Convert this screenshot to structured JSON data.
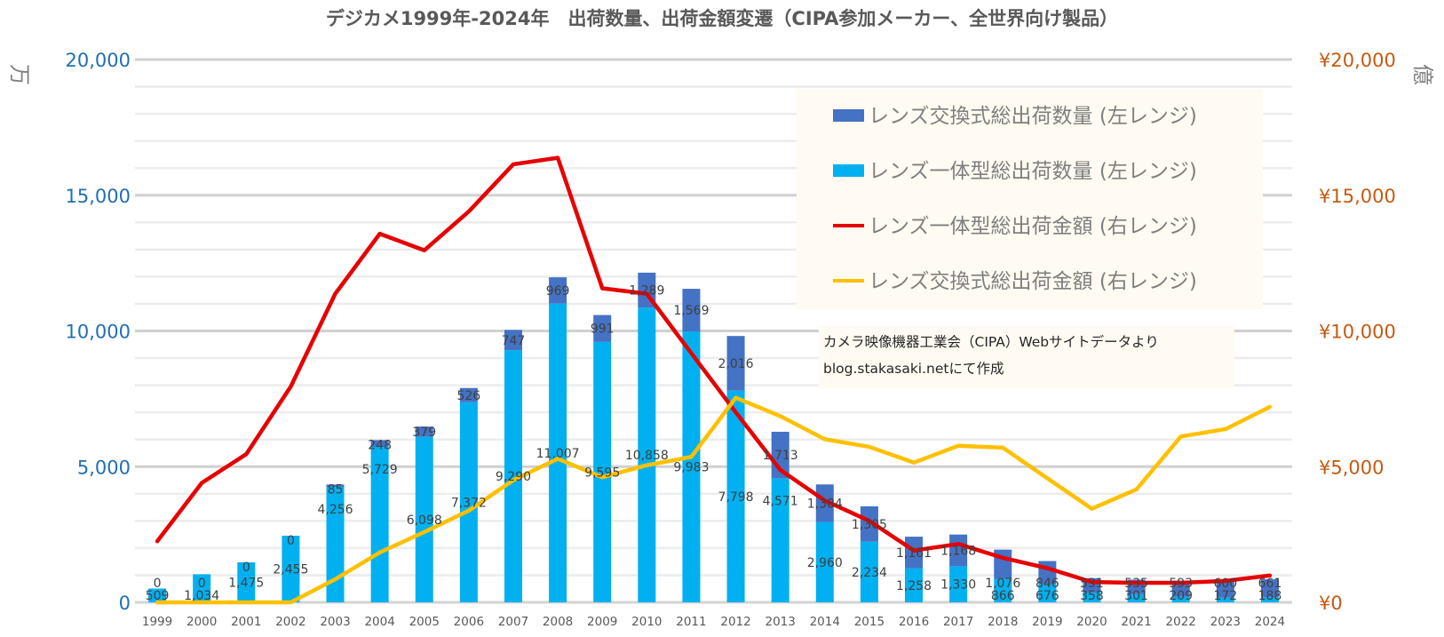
{
  "chart_data": {
    "type": "bar",
    "title": "デジカメ1999年-2024年　出荷数量、出荷金額変遷（CIPA参加メーカー、全世界向け製品）",
    "xlabel": "",
    "ylabel_left": "万",
    "ylabel_right": "億",
    "ylim_left": [
      0,
      20000
    ],
    "ylim_right": [
      0,
      20000
    ],
    "grid": true,
    "legend_position": "top-right",
    "left_ticks": [
      "0",
      "5,000",
      "10,000",
      "15,000",
      "20,000"
    ],
    "right_ticks": [
      "¥0",
      "¥5,000",
      "¥10,000",
      "¥15,000",
      "¥20,000"
    ],
    "categories": [
      "1999",
      "2000",
      "2001",
      "2002",
      "2003",
      "2004",
      "2005",
      "2006",
      "2007",
      "2008",
      "2009",
      "2010",
      "2011",
      "2012",
      "2013",
      "2014",
      "2015",
      "2016",
      "2017",
      "2018",
      "2019",
      "2020",
      "2021",
      "2022",
      "2023",
      "2024"
    ],
    "series": [
      {
        "name": "レンズ一体型総出荷数量 (左レンジ)",
        "type": "stacked-bar",
        "axis": "left",
        "color": "#00b0f0",
        "values": [
          509,
          1034,
          1475,
          2455,
          4256,
          5729,
          6098,
          7372,
          9290,
          11007,
          9595,
          10858,
          9983,
          7798,
          4571,
          2960,
          2234,
          1258,
          1330,
          866,
          676,
          358,
          301,
          209,
          172,
          188
        ],
        "labels": [
          "509",
          "1,034",
          "1,475",
          "2,455",
          "4,256",
          "5,729",
          "6,098",
          "7,372",
          "9,290",
          "11,007",
          "9,595",
          "10,858",
          "9,983",
          "7,798",
          "4,571",
          "2,960",
          "2,234",
          "1,258",
          "1,330",
          "866",
          "676",
          "358",
          "301",
          "209",
          "172",
          "188"
        ]
      },
      {
        "name": "レンズ交換式総出荷数量 (左レンジ)",
        "type": "stacked-bar",
        "axis": "left",
        "color": "#4472c4",
        "values": [
          0,
          0,
          0,
          0,
          85,
          248,
          379,
          526,
          747,
          969,
          991,
          1289,
          1569,
          2016,
          1713,
          1384,
          1305,
          1161,
          1168,
          1076,
          846,
          531,
          535,
          593,
          600,
          661
        ],
        "labels": [
          "0",
          "0",
          "0",
          "0",
          "85",
          "248",
          "379",
          "526",
          "747",
          "969",
          "991",
          "1,289",
          "1,569",
          "2,016",
          "1,713",
          "1,384",
          "1,305",
          "1,161",
          "1,168",
          "1,076",
          "846",
          "531",
          "535",
          "593",
          "600",
          "661"
        ]
      },
      {
        "name": "レンズ一体型総出荷金額 (右レンジ)",
        "type": "line",
        "axis": "right",
        "color": "#e60000",
        "values": [
          2250,
          4400,
          5460,
          7950,
          11370,
          13580,
          12970,
          14400,
          16140,
          16380,
          11570,
          11370,
          9180,
          7000,
          4880,
          3750,
          3000,
          1910,
          2150,
          1640,
          1260,
          750,
          720,
          720,
          790,
          990
        ]
      },
      {
        "name": "レンズ交換式総出荷金額 (右レンジ)",
        "type": "line",
        "axis": "right",
        "color": "#ffc000",
        "values": [
          0,
          0,
          0,
          0,
          850,
          1840,
          2590,
          3380,
          4500,
          5290,
          4610,
          5050,
          5360,
          7540,
          6860,
          6010,
          5730,
          5150,
          5770,
          5700,
          4570,
          3450,
          4160,
          6110,
          6380,
          7200
        ]
      }
    ],
    "legend": [
      {
        "label": "レンズ交換式総出荷数量 (左レンジ)",
        "color": "#4472c4",
        "kind": "box"
      },
      {
        "label": "レンズ一体型総出荷数量 (左レンジ)",
        "color": "#00b0f0",
        "kind": "box"
      },
      {
        "label": "レンズ一体型総出荷金額 (右レンジ)",
        "color": "#e60000",
        "kind": "line"
      },
      {
        "label": "レンズ交換式総出荷金額 (右レンジ)",
        "color": "#ffc000",
        "kind": "line"
      }
    ],
    "annotations": [
      "カメラ映像機器工業会（CIPA）Webサイトデータより",
      "blog.stakasaki.netにて作成"
    ]
  }
}
